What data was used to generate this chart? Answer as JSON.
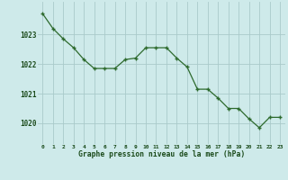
{
  "x": [
    0,
    1,
    2,
    3,
    4,
    5,
    6,
    7,
    8,
    9,
    10,
    11,
    12,
    13,
    14,
    15,
    16,
    17,
    18,
    19,
    20,
    21,
    22,
    23
  ],
  "y": [
    1023.7,
    1023.2,
    1022.85,
    1022.55,
    1022.15,
    1021.85,
    1021.85,
    1021.85,
    1022.15,
    1022.2,
    1022.55,
    1022.55,
    1022.55,
    1022.2,
    1021.9,
    1021.15,
    1021.15,
    1020.85,
    1020.5,
    1020.5,
    1020.15,
    1019.85,
    1020.2,
    1020.2
  ],
  "line_color": "#2d6a2d",
  "marker_color": "#2d6a2d",
  "bg_color": "#ceeaea",
  "grid_color": "#aacaca",
  "title": "Graphe pression niveau de la mer (hPa)",
  "title_color": "#1a4a1a",
  "tick_color": "#1a4a1a",
  "ytick_labels": [
    "1020",
    "1021",
    "1022",
    "1023"
  ],
  "ylim": [
    1019.3,
    1024.1
  ],
  "xlim": [
    -0.5,
    23.5
  ],
  "ytick_values": [
    1020,
    1021,
    1022,
    1023
  ],
  "xtick_values": [
    0,
    1,
    2,
    3,
    4,
    5,
    6,
    7,
    8,
    9,
    10,
    11,
    12,
    13,
    14,
    15,
    16,
    17,
    18,
    19,
    20,
    21,
    22,
    23
  ]
}
